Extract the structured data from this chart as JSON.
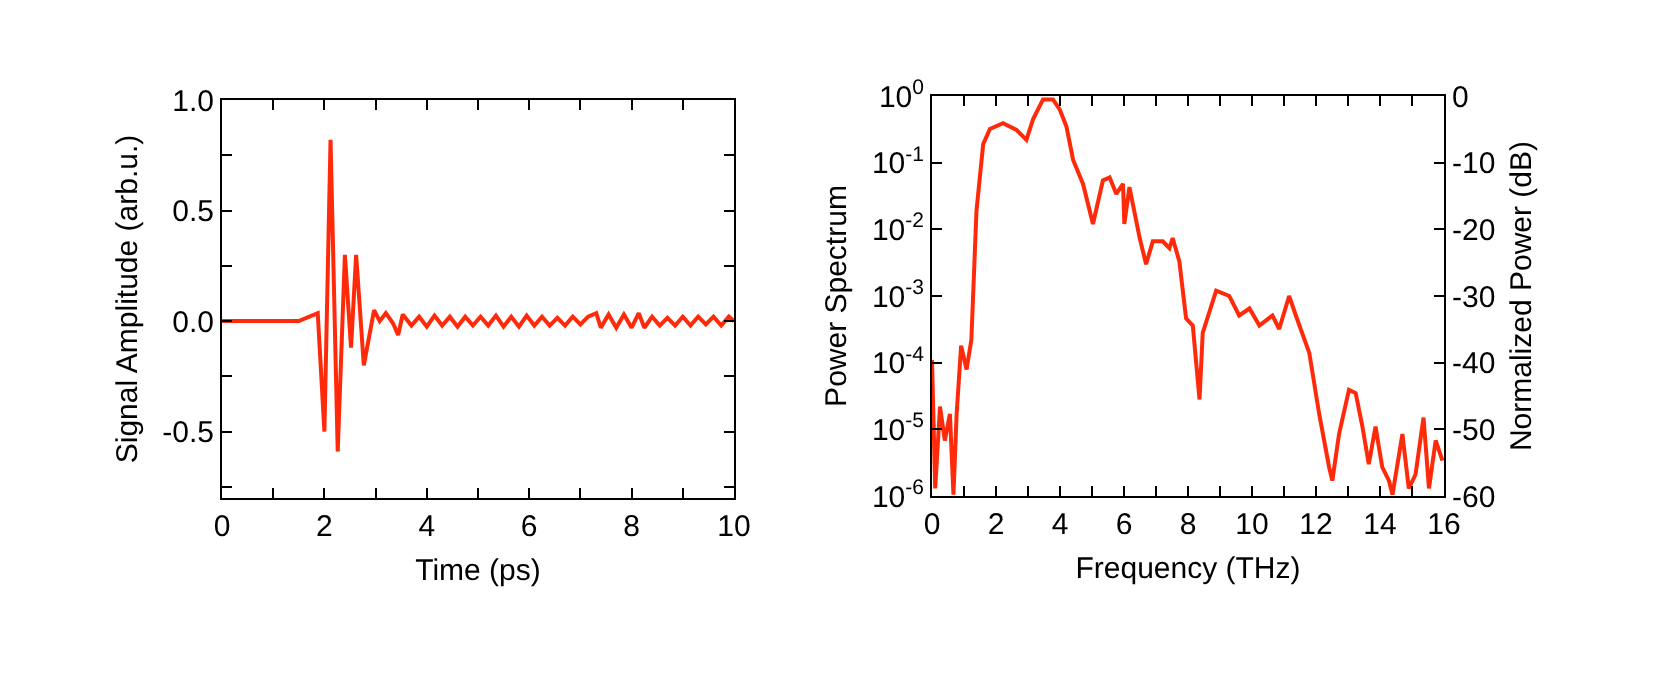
{
  "chart_data": [
    {
      "type": "line",
      "xlabel": "Time (ps)",
      "ylabel": "Signal Amplitude (arb.u.)",
      "grid": false,
      "marker": "none",
      "line_style": "solid",
      "x": [
        0,
        1.5,
        1.87,
        2.0,
        2.12,
        2.26,
        2.4,
        2.52,
        2.62,
        2.77,
        2.97,
        3.08,
        3.2,
        3.34,
        3.44,
        3.53,
        3.7,
        3.85,
        4.0,
        4.15,
        4.3,
        4.45,
        4.6,
        4.75,
        4.9,
        5.05,
        5.2,
        5.35,
        5.5,
        5.65,
        5.8,
        5.95,
        6.1,
        6.25,
        6.4,
        6.55,
        6.7,
        6.85,
        7.0,
        7.15,
        7.31,
        7.4,
        7.55,
        7.7,
        7.85,
        8.0,
        8.14,
        8.25,
        8.4,
        8.55,
        8.7,
        8.85,
        9.0,
        9.15,
        9.3,
        9.45,
        9.6,
        9.75,
        9.9,
        10
      ],
      "series": [
        {
          "color": "#ff2a0a",
          "values": [
            0,
            0,
            0.036,
            -0.5,
            0.82,
            -0.59,
            0.3,
            -0.12,
            0.3,
            -0.2,
            0.05,
            0,
            0.036,
            -0.01,
            -0.063,
            0.03,
            -0.02,
            0.02,
            -0.025,
            0.025,
            -0.02,
            0.02,
            -0.025,
            0.02,
            -0.02,
            0.02,
            -0.02,
            0.025,
            -0.025,
            0.02,
            -0.025,
            0.025,
            -0.02,
            0.02,
            -0.02,
            0.015,
            -0.02,
            0.02,
            -0.015,
            0.02,
            0.036,
            -0.03,
            0.03,
            -0.03,
            0.03,
            -0.03,
            0.036,
            -0.03,
            0.02,
            -0.02,
            0.015,
            -0.02,
            0.02,
            -0.02,
            0.02,
            -0.015,
            0.02,
            -0.02,
            0.02,
            0
          ]
        }
      ],
      "xlim": [
        0,
        10
      ],
      "xticks": [
        0,
        {
          "value": 1,
          "label": null
        },
        2,
        {
          "value": 3,
          "label": null
        },
        4,
        {
          "value": 5,
          "label": null
        },
        6,
        {
          "value": 7,
          "label": null
        },
        8,
        {
          "value": 9,
          "label": null
        },
        10
      ],
      "ylim": [
        -0.8,
        1.0
      ],
      "yticks": [
        {
          "value": -0.75,
          "label": null
        },
        {
          "value": -0.5,
          "label": "-0.5"
        },
        {
          "value": -0.25,
          "label": null
        },
        {
          "value": 0,
          "label": "0.0"
        },
        {
          "value": 0.25,
          "label": null
        },
        {
          "value": 0.5,
          "label": "0.5"
        },
        {
          "value": 0.75,
          "label": null
        },
        {
          "value": 1.0,
          "label": "1.0"
        }
      ]
    },
    {
      "type": "line",
      "xlabel": "Frequency (THz)",
      "ylabel": "Power Spectrum",
      "y2label": "Normalized Power (dB)",
      "grid": false,
      "marker": "none",
      "line_style": "solid",
      "log": "y",
      "x": [
        0,
        0.1,
        0.25,
        0.4,
        0.56,
        0.67,
        0.77,
        0.91,
        1.08,
        1.23,
        1.39,
        1.6,
        1.81,
        2.22,
        2.64,
        2.95,
        3.16,
        3.47,
        3.78,
        3.99,
        4.2,
        4.41,
        4.72,
        5.03,
        5.34,
        5.55,
        5.76,
        5.97,
        6.01,
        6.17,
        6.49,
        6.69,
        6.9,
        7.21,
        7.42,
        7.52,
        7.73,
        7.94,
        8.15,
        8.36,
        8.46,
        8.88,
        9.29,
        9.6,
        9.92,
        10.23,
        10.64,
        10.85,
        11.16,
        11.37,
        11.79,
        12.1,
        12.41,
        12.51,
        12.72,
        13.03,
        13.24,
        13.45,
        13.65,
        13.86,
        14.07,
        14.28,
        14.39,
        14.7,
        14.9,
        15.11,
        15.36,
        15.53,
        15.74,
        15.95
      ],
      "series": [
        {
          "color": "#ff2a0a",
          "values": [
            0.00011,
            1.3e-06,
            2.2e-05,
            6.8e-06,
            1.7e-05,
            1.05e-06,
            1.7e-05,
            0.00018,
            7.9e-05,
            0.00022,
            0.019,
            0.19,
            0.32,
            0.39,
            0.31,
            0.22,
            0.45,
            0.89,
            0.89,
            0.63,
            0.35,
            0.11,
            0.048,
            0.012,
            0.054,
            0.06,
            0.034,
            0.048,
            0.012,
            0.043,
            0.0074,
            0.003,
            0.0066,
            0.0066,
            0.0052,
            0.0074,
            0.0033,
            0.00046,
            0.00036,
            2.8e-05,
            0.00028,
            0.0012,
            0.001,
            0.00051,
            0.00065,
            0.00036,
            0.00051,
            0.00032,
            0.001,
            0.00051,
            0.00014,
            1.7e-05,
            2.7e-06,
            1.7e-06,
            8.5e-06,
            3.9e-05,
            3.5e-05,
            1.1e-05,
            3e-06,
            1.1e-05,
            2.7e-06,
            1.7e-06,
            1.05e-06,
            8.5e-06,
            1.3e-06,
            2.1e-06,
            1.5e-05,
            1.3e-06,
            6.8e-06,
            3.4e-06
          ]
        }
      ],
      "xlim": [
        0,
        16
      ],
      "xticks": [
        0,
        {
          "value": 1,
          "label": null
        },
        2,
        {
          "value": 3,
          "label": null
        },
        4,
        {
          "value": 5,
          "label": null
        },
        6,
        {
          "value": 7,
          "label": null
        },
        8,
        {
          "value": 9,
          "label": null
        },
        10,
        {
          "value": 11,
          "label": null
        },
        12,
        {
          "value": 13,
          "label": null
        },
        14,
        {
          "value": 15,
          "label": null
        },
        16
      ],
      "ylim": [
        1e-06,
        1
      ],
      "yticks": [
        {
          "value": 1e-06,
          "label": "10$^{-6}$"
        },
        {
          "value": 1e-05,
          "label": "10$^{-5}$"
        },
        {
          "value": 0.0001,
          "label": "10$^{-4}$"
        },
        {
          "value": 0.001,
          "label": "10$^{-3}$"
        },
        {
          "value": 0.01,
          "label": "10$^{-2}$"
        },
        {
          "value": 0.1,
          "label": "10$^{-1}$"
        },
        {
          "value": 1,
          "label": "10$^{0}$"
        }
      ],
      "y2lim": [
        -60,
        0
      ],
      "y2ticks": [
        -60,
        -50,
        -40,
        -30,
        -20,
        -10,
        0
      ]
    }
  ]
}
